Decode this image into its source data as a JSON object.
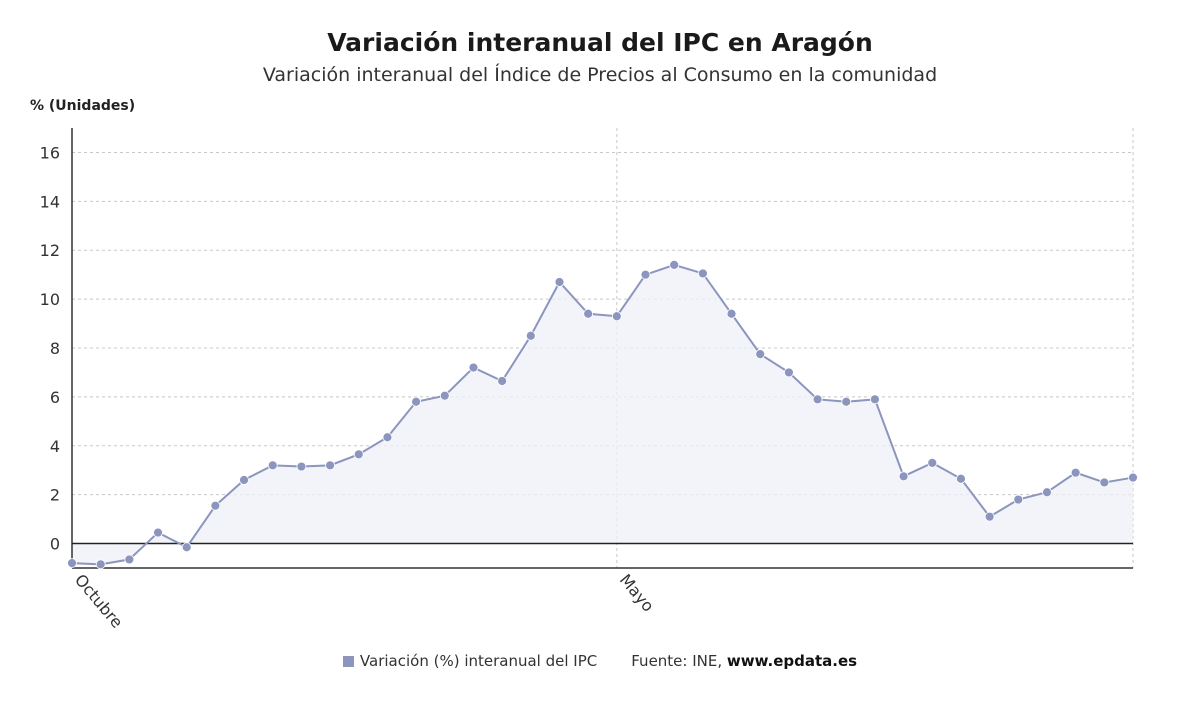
{
  "chart_data": {
    "type": "line",
    "title": "Variación interanual del IPC en Aragón",
    "subtitle": "Variación interanual del Índice de Precios al Consumo en la comunidad",
    "ylabel": "% (Unidades)",
    "ylim": [
      -1,
      17
    ],
    "yticks": [
      0,
      2,
      4,
      6,
      8,
      10,
      12,
      14,
      16
    ],
    "x_tick_labels": [
      {
        "label": "Octubre",
        "index": 0
      },
      {
        "label": "Mayo",
        "index": 19
      }
    ],
    "grid": true,
    "legend_position": "bottom",
    "series": [
      {
        "name": "Variación (%) interanual del IPC",
        "color": "#8c95bd",
        "values": [
          -0.8,
          -0.85,
          -0.65,
          0.45,
          -0.15,
          1.55,
          2.6,
          3.2,
          3.15,
          3.2,
          3.65,
          4.35,
          5.8,
          6.05,
          7.2,
          6.65,
          8.5,
          10.7,
          9.4,
          9.3,
          11.0,
          11.4,
          11.05,
          9.4,
          7.75,
          7.0,
          5.9,
          5.8,
          5.9,
          2.75,
          3.3,
          2.65,
          1.1,
          1.8,
          2.1,
          2.9,
          2.5,
          2.7
        ]
      }
    ]
  },
  "legend": {
    "series_label": "Variación (%) interanual del IPC",
    "source_prefix": "Fuente: INE, ",
    "source_site": "www.epdata.es"
  }
}
